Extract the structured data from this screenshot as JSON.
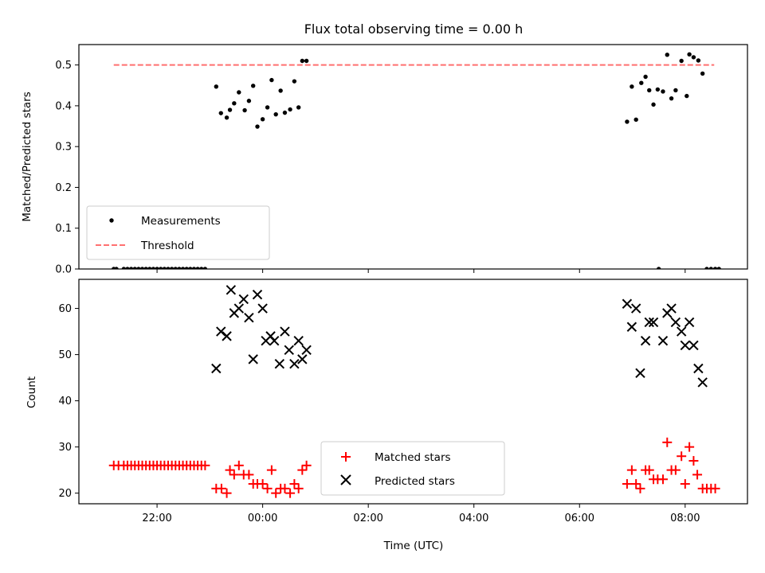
{
  "chart_data": [
    {
      "type": "scatter",
      "title": "Flux total observing time = 0.00 h",
      "ylabel": "Matched/Predicted stars",
      "xlabel": "",
      "xlim": [
        20.52,
        33.18
      ],
      "ylim": [
        0,
        0.55
      ],
      "x_ticks": [
        22,
        24,
        26,
        28,
        30,
        32
      ],
      "x_tick_labels": [
        "",
        "",
        "",
        "",
        "",
        ""
      ],
      "y_ticks": [
        0.0,
        0.1,
        0.2,
        0.3,
        0.4,
        0.5
      ],
      "y_tick_labels": [
        "0.0",
        "0.1",
        "0.2",
        "0.3",
        "0.4",
        "0.5"
      ],
      "legend_position": "lower-left",
      "series": [
        {
          "name": "Measurements",
          "marker": "dot",
          "color": "#000000",
          "points": [
            [
              21.18,
              0.0
            ],
            [
              21.23,
              0.0
            ],
            [
              21.37,
              0.0
            ],
            [
              21.44,
              0.0
            ],
            [
              21.51,
              0.0
            ],
            [
              21.58,
              0.0
            ],
            [
              21.65,
              0.0
            ],
            [
              21.72,
              0.0
            ],
            [
              21.79,
              0.0
            ],
            [
              21.86,
              0.0
            ],
            [
              21.93,
              0.0
            ],
            [
              22.0,
              0.0
            ],
            [
              22.07,
              0.0
            ],
            [
              22.14,
              0.0
            ],
            [
              22.21,
              0.0
            ],
            [
              22.28,
              0.0
            ],
            [
              22.35,
              0.0
            ],
            [
              22.42,
              0.0
            ],
            [
              22.49,
              0.0
            ],
            [
              22.56,
              0.0
            ],
            [
              22.63,
              0.0
            ],
            [
              22.7,
              0.0
            ],
            [
              22.77,
              0.0
            ],
            [
              22.84,
              0.0
            ],
            [
              22.91,
              0.0
            ],
            [
              23.12,
              0.447
            ],
            [
              23.21,
              0.382
            ],
            [
              23.32,
              0.371
            ],
            [
              23.38,
              0.39
            ],
            [
              23.46,
              0.406
            ],
            [
              23.55,
              0.433
            ],
            [
              23.66,
              0.389
            ],
            [
              23.74,
              0.412
            ],
            [
              23.82,
              0.449
            ],
            [
              23.9,
              0.349
            ],
            [
              24.0,
              0.367
            ],
            [
              24.09,
              0.396
            ],
            [
              24.17,
              0.463
            ],
            [
              24.25,
              0.379
            ],
            [
              24.34,
              0.437
            ],
            [
              24.42,
              0.383
            ],
            [
              24.52,
              0.391
            ],
            [
              24.6,
              0.46
            ],
            [
              24.68,
              0.396
            ],
            [
              24.75,
              0.51
            ],
            [
              24.83,
              0.51
            ],
            [
              30.9,
              0.361
            ],
            [
              30.99,
              0.447
            ],
            [
              31.07,
              0.366
            ],
            [
              31.17,
              0.456
            ],
            [
              31.25,
              0.471
            ],
            [
              31.32,
              0.438
            ],
            [
              31.4,
              0.403
            ],
            [
              31.48,
              0.44
            ],
            [
              31.58,
              0.435
            ],
            [
              31.66,
              0.525
            ],
            [
              31.74,
              0.418
            ],
            [
              31.82,
              0.438
            ],
            [
              31.93,
              0.51
            ],
            [
              32.03,
              0.424
            ],
            [
              32.08,
              0.526
            ],
            [
              32.16,
              0.519
            ],
            [
              32.25,
              0.511
            ],
            [
              32.33,
              0.479
            ],
            [
              31.5,
              0.0
            ],
            [
              32.41,
              0.0
            ],
            [
              32.49,
              0.0
            ],
            [
              32.57,
              0.0
            ],
            [
              32.64,
              0.0
            ]
          ]
        },
        {
          "name": "Threshold",
          "marker": "dashed-line",
          "color": "#ff7070",
          "points": [
            [
              21.18,
              0.5
            ],
            [
              32.55,
              0.5
            ]
          ]
        }
      ]
    },
    {
      "type": "scatter",
      "title": "",
      "ylabel": "Count",
      "xlabel": "Time (UTC)",
      "xlim": [
        20.52,
        33.18
      ],
      "ylim": [
        17.7,
        66.3
      ],
      "x_ticks": [
        22,
        24,
        26,
        28,
        30,
        32
      ],
      "x_tick_labels": [
        "22:00",
        "00:00",
        "02:00",
        "04:00",
        "06:00",
        "08:00"
      ],
      "y_ticks": [
        20,
        30,
        40,
        50,
        60
      ],
      "y_tick_labels": [
        "20",
        "30",
        "40",
        "50",
        "60"
      ],
      "legend_position": "lower-center",
      "series": [
        {
          "name": "Matched stars",
          "marker": "plus",
          "color": "#ff0000",
          "points": [
            [
              21.18,
              26
            ],
            [
              21.27,
              26
            ],
            [
              21.37,
              26
            ],
            [
              21.44,
              26
            ],
            [
              21.51,
              26
            ],
            [
              21.58,
              26
            ],
            [
              21.65,
              26
            ],
            [
              21.72,
              26
            ],
            [
              21.79,
              26
            ],
            [
              21.86,
              26
            ],
            [
              21.93,
              26
            ],
            [
              22.0,
              26
            ],
            [
              22.07,
              26
            ],
            [
              22.14,
              26
            ],
            [
              22.21,
              26
            ],
            [
              22.28,
              26
            ],
            [
              22.35,
              26
            ],
            [
              22.42,
              26
            ],
            [
              22.49,
              26
            ],
            [
              22.56,
              26
            ],
            [
              22.63,
              26
            ],
            [
              22.7,
              26
            ],
            [
              22.77,
              26
            ],
            [
              22.84,
              26
            ],
            [
              22.91,
              26
            ],
            [
              23.12,
              21
            ],
            [
              23.22,
              21
            ],
            [
              23.32,
              20
            ],
            [
              23.38,
              25
            ],
            [
              23.46,
              24
            ],
            [
              23.55,
              26
            ],
            [
              23.64,
              24
            ],
            [
              23.74,
              24
            ],
            [
              23.82,
              22
            ],
            [
              23.9,
              22
            ],
            [
              24.0,
              22
            ],
            [
              24.09,
              21
            ],
            [
              24.17,
              25
            ],
            [
              24.25,
              20
            ],
            [
              24.34,
              21
            ],
            [
              24.42,
              21
            ],
            [
              24.52,
              20
            ],
            [
              24.6,
              22
            ],
            [
              24.68,
              21
            ],
            [
              24.75,
              25
            ],
            [
              24.83,
              26
            ],
            [
              30.9,
              22
            ],
            [
              30.99,
              25
            ],
            [
              31.07,
              22
            ],
            [
              31.15,
              21
            ],
            [
              31.25,
              25
            ],
            [
              31.32,
              25
            ],
            [
              31.4,
              23
            ],
            [
              31.48,
              23
            ],
            [
              31.58,
              23
            ],
            [
              31.66,
              31
            ],
            [
              31.74,
              25
            ],
            [
              31.82,
              25
            ],
            [
              31.93,
              28
            ],
            [
              32.0,
              22
            ],
            [
              32.08,
              30
            ],
            [
              32.16,
              27
            ],
            [
              32.23,
              24
            ],
            [
              32.33,
              21
            ],
            [
              32.41,
              21
            ],
            [
              32.49,
              21
            ],
            [
              32.57,
              21
            ]
          ]
        },
        {
          "name": "Predicted stars",
          "marker": "x",
          "color": "#000000",
          "points": [
            [
              23.12,
              47
            ],
            [
              23.21,
              55
            ],
            [
              23.32,
              54
            ],
            [
              23.4,
              64
            ],
            [
              23.46,
              59
            ],
            [
              23.55,
              60
            ],
            [
              23.64,
              62
            ],
            [
              23.74,
              58
            ],
            [
              23.82,
              49
            ],
            [
              23.9,
              63
            ],
            [
              24.0,
              60
            ],
            [
              24.06,
              53
            ],
            [
              24.15,
              54
            ],
            [
              24.22,
              53
            ],
            [
              24.32,
              48
            ],
            [
              24.42,
              55
            ],
            [
              24.5,
              51
            ],
            [
              24.6,
              48
            ],
            [
              24.68,
              53
            ],
            [
              24.75,
              49
            ],
            [
              24.83,
              51
            ],
            [
              30.9,
              61
            ],
            [
              30.99,
              56
            ],
            [
              31.07,
              60
            ],
            [
              31.15,
              46
            ],
            [
              31.25,
              53
            ],
            [
              31.32,
              57
            ],
            [
              31.4,
              57
            ],
            [
              31.58,
              53
            ],
            [
              31.66,
              59
            ],
            [
              31.74,
              60
            ],
            [
              31.82,
              57
            ],
            [
              31.93,
              55
            ],
            [
              32.0,
              52
            ],
            [
              32.08,
              57
            ],
            [
              32.16,
              52
            ],
            [
              32.25,
              47
            ],
            [
              32.33,
              44
            ]
          ]
        }
      ]
    }
  ]
}
